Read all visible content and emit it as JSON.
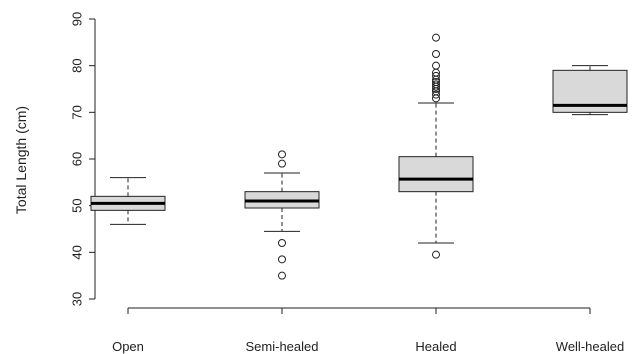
{
  "chart_data": {
    "type": "boxplot",
    "ylabel": "Total Length (cm)",
    "ylim": [
      28,
      92
    ],
    "yticks": [
      30,
      40,
      50,
      60,
      70,
      80,
      90
    ],
    "categories": [
      "Open",
      "Semi-healed",
      "Healed",
      "Well-healed"
    ],
    "box_fill": "#d9d9d9",
    "boxes": [
      {
        "name": "Open",
        "whisker_low": 46,
        "q1": 49,
        "median": 50.5,
        "q3": 52,
        "whisker_high": 56,
        "outliers": []
      },
      {
        "name": "Semi-healed",
        "whisker_low": 44.5,
        "q1": 49.5,
        "median": 51,
        "q3": 53,
        "whisker_high": 57,
        "outliers": [
          35,
          38.5,
          42,
          59,
          61
        ]
      },
      {
        "name": "Healed",
        "whisker_low": 42,
        "q1": 53,
        "median": 55.7,
        "q3": 60.5,
        "whisker_high": 72,
        "outliers": [
          39.5,
          73,
          73.8,
          74.5,
          75,
          75.5,
          76,
          76.5,
          77,
          77.8,
          78.5,
          80,
          82.5,
          86
        ]
      },
      {
        "name": "Well-healed",
        "whisker_low": 69.5,
        "q1": 70,
        "median": 71.5,
        "q3": 79,
        "whisker_high": 80,
        "outliers": []
      }
    ]
  }
}
